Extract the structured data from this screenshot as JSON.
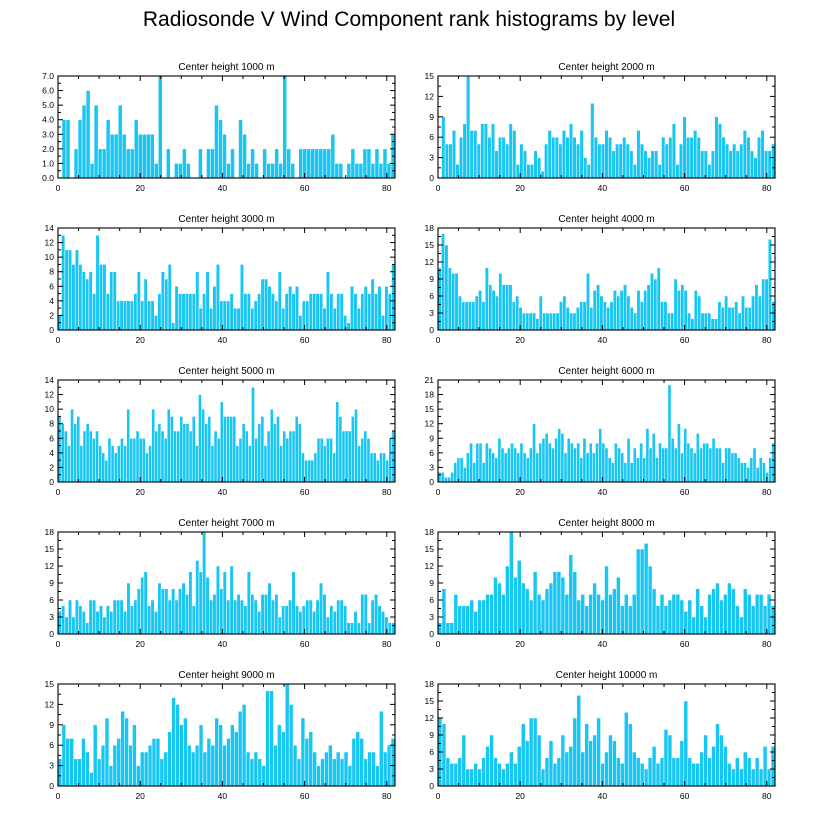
{
  "page": {
    "title": "Radiosonde V Wind Component rank histograms by level"
  },
  "chart_data": [
    {
      "type": "bar",
      "title": "Center height 1000 m",
      "xlim": [
        0,
        82
      ],
      "ylim": [
        0,
        7
      ],
      "yticks": [
        "0.0",
        "1.0",
        "2.0",
        "3.0",
        "4.0",
        "5.0",
        "6.0",
        "7.0"
      ],
      "xticks": [
        "0",
        "20",
        "40",
        "60",
        "80"
      ],
      "values": [
        0,
        4,
        4,
        0,
        2,
        4,
        5,
        6,
        1,
        5,
        2,
        2,
        4,
        3,
        3,
        5,
        3,
        2,
        2,
        4,
        3,
        3,
        3,
        3,
        1,
        7,
        0,
        2,
        0,
        1,
        1,
        2,
        1,
        0,
        0,
        2,
        0,
        2,
        2,
        5,
        4,
        3,
        1,
        2,
        0,
        4,
        3,
        1,
        2,
        1,
        0,
        2,
        1,
        1,
        2,
        1,
        7,
        2,
        1,
        0,
        2,
        2,
        2,
        2,
        2,
        2,
        2,
        2,
        3,
        1,
        1,
        0,
        1,
        2,
        1,
        1,
        2,
        2,
        1,
        2,
        1,
        2,
        1,
        3
      ]
    },
    {
      "type": "bar",
      "title": "Center height 2000 m",
      "xlim": [
        0,
        82
      ],
      "ylim": [
        0,
        15
      ],
      "yticks": [
        "0",
        "3",
        "6",
        "9",
        "12",
        "15"
      ],
      "xticks": [
        "0",
        "20",
        "40",
        "60",
        "80"
      ],
      "values": [
        0,
        9,
        5,
        5,
        7,
        2,
        6,
        8,
        15,
        7,
        7,
        5,
        8,
        8,
        6,
        8,
        4,
        6,
        6,
        5,
        8,
        7,
        2,
        5,
        4,
        2,
        2,
        4,
        3,
        1,
        5,
        7,
        6,
        6,
        5,
        7,
        6,
        8,
        6,
        5,
        7,
        3,
        2,
        11,
        6,
        5,
        5,
        7,
        6,
        4,
        5,
        5,
        6,
        5,
        4,
        2,
        7,
        5,
        4,
        3,
        4,
        4,
        2,
        6,
        5,
        6,
        8,
        2,
        5,
        9,
        6,
        6,
        7,
        6,
        4,
        4,
        2,
        4,
        9,
        8,
        6,
        5,
        4,
        5,
        4,
        5,
        7,
        6,
        4,
        3,
        6,
        7,
        4,
        4,
        5
      ]
    },
    {
      "type": "bar",
      "title": "Center height 3000 m",
      "xlim": [
        0,
        82
      ],
      "ylim": [
        0,
        14
      ],
      "yticks": [
        "0",
        "2",
        "4",
        "6",
        "8",
        "10",
        "12",
        "14"
      ],
      "xticks": [
        "0",
        "20",
        "40",
        "60",
        "80"
      ],
      "values": [
        2,
        13,
        11,
        11,
        9,
        11,
        9,
        8,
        7,
        8,
        5,
        13,
        9,
        9,
        5,
        8,
        8,
        4,
        4,
        4,
        4,
        4,
        5,
        8,
        4,
        7,
        4,
        4,
        2,
        5,
        8,
        7,
        9,
        1,
        6,
        5,
        5,
        5,
        5,
        5,
        8,
        3,
        5,
        8,
        3,
        6,
        9,
        4,
        4,
        4,
        5,
        3,
        3,
        9,
        5,
        5,
        3,
        4,
        5,
        7,
        7,
        6,
        5,
        4,
        8,
        3,
        5,
        6,
        5,
        6,
        2,
        4,
        4,
        5,
        5,
        5,
        5,
        3,
        8,
        5,
        3,
        5,
        5,
        2,
        1,
        6,
        5,
        3,
        5,
        6,
        5,
        7,
        5,
        6,
        2,
        6,
        5,
        9
      ]
    },
    {
      "type": "bar",
      "title": "Center height 4000 m",
      "xlim": [
        0,
        82
      ],
      "ylim": [
        0,
        18
      ],
      "yticks": [
        "0",
        "3",
        "6",
        "9",
        "12",
        "15",
        "18"
      ],
      "xticks": [
        "0",
        "20",
        "40",
        "60",
        "80"
      ],
      "values": [
        11,
        17,
        15,
        11,
        10,
        10,
        6,
        5,
        5,
        5,
        5,
        6,
        7,
        5,
        11,
        8,
        7,
        6,
        10,
        8,
        8,
        8,
        5,
        6,
        4,
        3,
        3,
        3,
        3,
        2,
        6,
        3,
        3,
        3,
        3,
        3,
        5,
        6,
        4,
        3,
        3,
        4,
        5,
        5,
        10,
        4,
        7,
        8,
        6,
        5,
        4,
        5,
        7,
        6,
        7,
        8,
        6,
        4,
        3,
        7,
        5,
        7,
        8,
        10,
        9,
        11,
        5,
        5,
        3,
        3,
        9,
        7,
        8,
        7,
        3,
        2,
        7,
        6,
        3,
        3,
        3,
        2,
        2,
        5,
        4,
        6,
        4,
        4,
        5,
        3,
        6,
        4,
        4,
        6,
        8,
        6,
        9,
        9,
        16,
        5
      ]
    },
    {
      "type": "bar",
      "title": "Center height 5000 m",
      "xlim": [
        0,
        82
      ],
      "ylim": [
        0,
        14
      ],
      "yticks": [
        "0",
        "2",
        "4",
        "6",
        "8",
        "10",
        "12",
        "14"
      ],
      "xticks": [
        "0",
        "20",
        "40",
        "60",
        "80"
      ],
      "values": [
        9,
        8,
        7,
        5,
        10,
        8,
        9,
        5,
        7,
        8,
        7,
        6,
        7,
        5,
        4,
        3,
        6,
        5,
        4,
        5,
        6,
        5,
        10,
        6,
        6,
        7,
        6,
        6,
        4,
        5,
        10,
        7,
        8,
        7,
        6,
        10,
        9,
        7,
        7,
        9,
        8,
        8,
        7,
        9,
        5,
        12,
        10,
        8,
        9,
        5,
        7,
        6,
        11,
        9,
        9,
        9,
        9,
        5,
        6,
        8,
        7,
        5,
        13,
        6,
        8,
        9,
        5,
        7,
        10,
        8,
        9,
        5,
        7,
        6,
        7,
        7,
        9,
        8,
        4,
        3,
        3,
        3,
        4,
        6,
        6,
        5,
        6,
        6,
        4,
        11,
        9,
        7,
        7,
        7,
        9,
        10,
        5,
        6,
        7,
        6,
        4,
        4,
        3,
        4,
        4,
        3,
        6,
        7
      ]
    },
    {
      "type": "bar",
      "title": "Center height 6000 m",
      "xlim": [
        0,
        82
      ],
      "ylim": [
        0,
        21
      ],
      "yticks": [
        "0",
        "3",
        "6",
        "9",
        "12",
        "15",
        "18",
        "21"
      ],
      "xticks": [
        "0",
        "20",
        "40",
        "60",
        "80"
      ],
      "values": [
        2,
        2,
        1,
        1,
        2,
        4,
        5,
        5,
        3,
        6,
        8,
        4,
        8,
        8,
        4,
        8,
        7,
        6,
        5,
        9,
        7,
        6,
        7,
        8,
        7,
        6,
        8,
        6,
        5,
        7,
        12,
        6,
        8,
        9,
        10,
        8,
        7,
        9,
        11,
        10,
        6,
        9,
        8,
        7,
        8,
        5,
        9,
        6,
        8,
        6,
        8,
        11,
        8,
        7,
        5,
        4,
        8,
        7,
        6,
        4,
        9,
        4,
        7,
        5,
        8,
        5,
        11,
        7,
        10,
        5,
        8,
        7,
        7,
        20,
        9,
        7,
        12,
        6,
        11,
        8,
        7,
        6,
        10,
        7,
        8,
        8,
        7,
        9,
        7,
        7,
        4,
        7,
        7,
        6,
        6,
        5,
        4,
        4,
        3,
        5,
        7,
        3,
        5,
        4,
        2,
        5,
        8
      ]
    },
    {
      "type": "bar",
      "title": "Center height 7000 m",
      "xlim": [
        0,
        82
      ],
      "ylim": [
        0,
        18
      ],
      "yticks": [
        "0",
        "3",
        "6",
        "9",
        "12",
        "15",
        "18"
      ],
      "xticks": [
        "0",
        "20",
        "40",
        "60",
        "80"
      ],
      "values": [
        4,
        5,
        3,
        6,
        3,
        6,
        5,
        4,
        2,
        6,
        6,
        4,
        5,
        3,
        5,
        4,
        6,
        6,
        6,
        4,
        9,
        5,
        6,
        8,
        10,
        11,
        5,
        6,
        4,
        9,
        8,
        8,
        6,
        8,
        6,
        8,
        9,
        7,
        11,
        5,
        13,
        11,
        18,
        10,
        6,
        7,
        12,
        8,
        11,
        6,
        12,
        6,
        7,
        6,
        5,
        11,
        7,
        6,
        4,
        7,
        7,
        9,
        6,
        7,
        3,
        5,
        5,
        6,
        11,
        5,
        4,
        5,
        6,
        6,
        4,
        6,
        9,
        7,
        3,
        5,
        4,
        6,
        6,
        5,
        2,
        2,
        4,
        2,
        7,
        7,
        2,
        6,
        7,
        5,
        4,
        3,
        2,
        2
      ]
    },
    {
      "type": "bar",
      "title": "Center height 8000 m",
      "xlim": [
        0,
        82
      ],
      "ylim": [
        0,
        18
      ],
      "yticks": [
        "0",
        "3",
        "6",
        "9",
        "12",
        "15",
        "18"
      ],
      "xticks": [
        "0",
        "20",
        "40",
        "60",
        "80"
      ],
      "values": [
        2,
        8,
        2,
        2,
        7,
        5,
        5,
        5,
        6,
        4,
        6,
        6,
        7,
        7,
        10,
        9,
        7,
        12,
        18,
        10,
        13,
        9,
        8,
        6,
        11,
        7,
        6,
        8,
        9,
        11,
        11,
        10,
        7,
        14,
        11,
        6,
        7,
        5,
        7,
        9,
        7,
        6,
        12,
        7,
        8,
        10,
        5,
        7,
        5,
        7,
        15,
        15,
        16,
        12,
        8,
        5,
        7,
        5,
        6,
        7,
        7,
        6,
        4,
        6,
        3,
        8,
        5,
        3,
        7,
        8,
        9,
        6,
        7,
        9,
        8,
        5,
        3,
        8,
        7,
        5,
        7,
        7,
        5,
        7,
        5
      ]
    },
    {
      "type": "bar",
      "title": "Center height 9000 m",
      "xlim": [
        0,
        82
      ],
      "ylim": [
        0,
        15
      ],
      "yticks": [
        "0",
        "3",
        "6",
        "9",
        "12",
        "15"
      ],
      "xticks": [
        "0",
        "20",
        "40",
        "60",
        "80"
      ],
      "values": [
        4,
        9,
        7,
        7,
        4,
        4,
        7,
        5,
        2,
        9,
        4,
        6,
        10,
        3,
        6,
        7,
        11,
        10,
        6,
        9,
        3,
        5,
        5,
        6,
        7,
        7,
        4,
        5,
        8,
        13,
        12,
        9,
        10,
        6,
        5,
        6,
        9,
        5,
        7,
        6,
        10,
        9,
        6,
        7,
        9,
        8,
        11,
        12,
        5,
        4,
        5,
        4,
        3,
        14,
        14,
        6,
        9,
        8,
        15,
        12,
        6,
        4,
        10,
        7,
        8,
        5,
        3,
        4,
        5,
        6,
        4,
        5,
        4,
        5,
        3,
        7,
        8,
        7,
        4,
        5,
        5,
        3,
        11,
        5,
        6,
        7
      ]
    },
    {
      "type": "bar",
      "title": "Center height 10000 m",
      "xlim": [
        0,
        82
      ],
      "ylim": [
        0,
        18
      ],
      "yticks": [
        "0",
        "3",
        "6",
        "9",
        "12",
        "15",
        "18"
      ],
      "xticks": [
        "0",
        "20",
        "40",
        "60",
        "80"
      ],
      "values": [
        12,
        11,
        5,
        4,
        4,
        5,
        9,
        3,
        3,
        4,
        3,
        5,
        7,
        9,
        5,
        4,
        3,
        4,
        6,
        4,
        7,
        11,
        8,
        12,
        12,
        9,
        3,
        5,
        8,
        4,
        5,
        9,
        6,
        7,
        12,
        16,
        6,
        11,
        8,
        9,
        12,
        4,
        6,
        9,
        8,
        5,
        4,
        13,
        11,
        6,
        5,
        4,
        3,
        5,
        7,
        4,
        5,
        10,
        9,
        5,
        5,
        8,
        15,
        5,
        4,
        4,
        6,
        9,
        5,
        7,
        11,
        9,
        7,
        4,
        3,
        5,
        3,
        6,
        5,
        3,
        5,
        3,
        7,
        3,
        7
      ]
    }
  ]
}
